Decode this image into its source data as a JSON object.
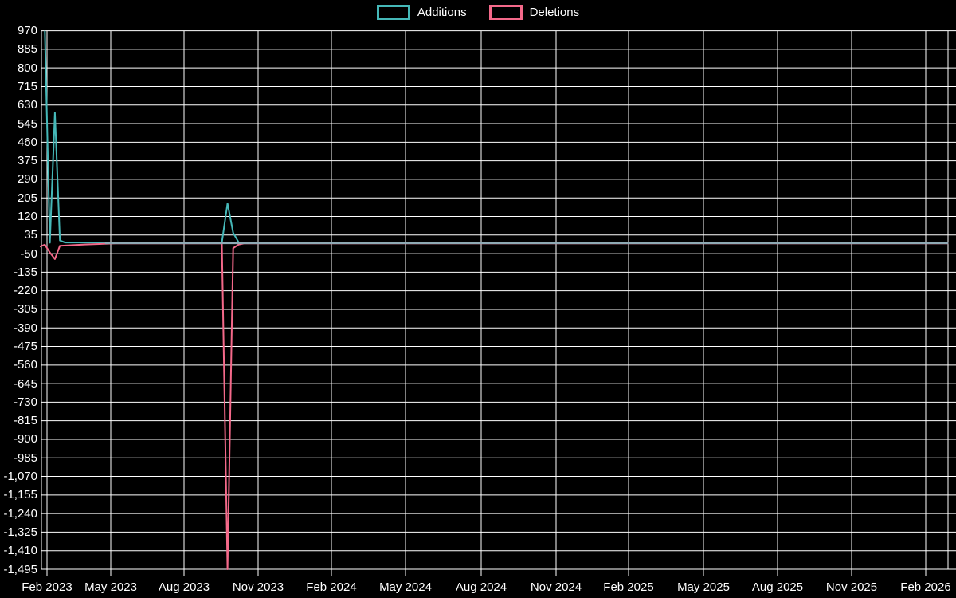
{
  "legend": {
    "items": [
      {
        "id": "additions",
        "label": "Additions",
        "color": "#45b8b8"
      },
      {
        "id": "deletions",
        "label": "Deletions",
        "color": "#f4698a"
      }
    ]
  },
  "colors": {
    "background": "#000000",
    "grid": "#ffffff",
    "text": "#ffffff",
    "additions": "#45b8b8",
    "deletions": "#f4698a",
    "flat_overlap": "#8faab5"
  },
  "chart_data": {
    "type": "line",
    "title": "",
    "xlabel": "",
    "ylabel": "",
    "grid": true,
    "legend_position": "top",
    "ylim": [
      -1495,
      970
    ],
    "y_ticks": [
      970,
      885,
      800,
      715,
      630,
      545,
      460,
      375,
      290,
      205,
      120,
      35,
      -50,
      -135,
      -220,
      -305,
      -390,
      -475,
      -560,
      -645,
      -730,
      -815,
      -900,
      -985,
      -1070,
      -1155,
      -1240,
      -1325,
      -1410,
      -1495
    ],
    "x_ticks": [
      "Feb 2023",
      "May 2023",
      "Aug 2023",
      "Nov 2023",
      "Feb 2024",
      "May 2024",
      "Aug 2024",
      "Nov 2024",
      "Feb 2025",
      "May 2025",
      "Aug 2025",
      "Nov 2025",
      "Feb 2026"
    ],
    "series": [
      {
        "name": "Additions",
        "color": "#45b8b8",
        "points": [
          [
            "2023-01-29",
            970
          ],
          [
            "2023-02-05",
            0
          ],
          [
            "2023-02-12",
            595
          ],
          [
            "2023-02-19",
            10
          ],
          [
            "2023-02-26",
            1
          ],
          [
            "2023-09-17",
            1
          ],
          [
            "2023-09-24",
            180
          ],
          [
            "2023-10-01",
            45
          ],
          [
            "2023-10-08",
            1
          ],
          [
            "2026-03-01",
            1
          ]
        ]
      },
      {
        "name": "Deletions",
        "color": "#f4698a",
        "points": [
          [
            "2023-01-22",
            -18
          ],
          [
            "2023-01-29",
            -9
          ],
          [
            "2023-02-05",
            -45
          ],
          [
            "2023-02-12",
            -75
          ],
          [
            "2023-02-19",
            -14
          ],
          [
            "2023-03-26",
            -8
          ],
          [
            "2023-05-07",
            -3
          ],
          [
            "2023-09-17",
            -3
          ],
          [
            "2023-09-24",
            -1495
          ],
          [
            "2023-10-01",
            -25
          ],
          [
            "2023-10-08",
            -8
          ],
          [
            "2023-10-15",
            -3
          ],
          [
            "2026-03-01",
            -3
          ]
        ]
      }
    ]
  }
}
